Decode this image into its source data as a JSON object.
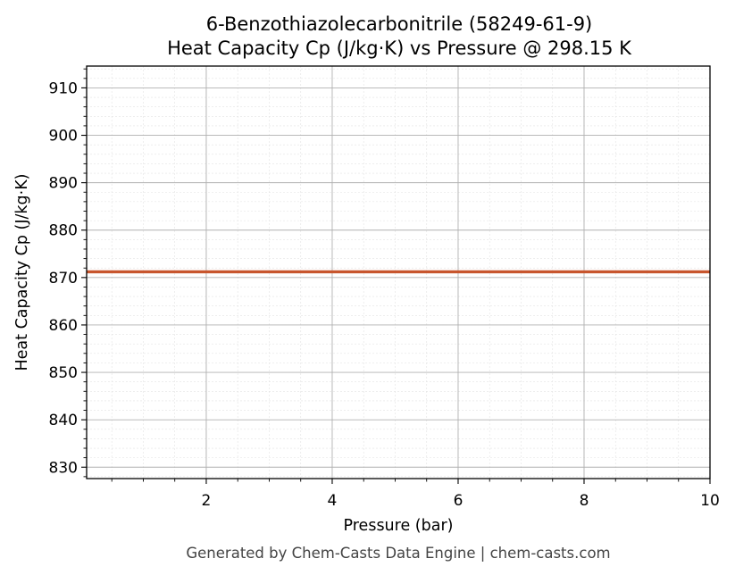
{
  "chart_data": {
    "type": "line",
    "title": "6-Benzothiazolecarbonitrile (58249-61-9)",
    "subtitle": "Heat Capacity Cp (J/kg·K) vs Pressure @ 298.15 K",
    "xlabel": "Pressure (bar)",
    "ylabel": "Heat Capacity Cp (J/kg·K)",
    "xlim": [
      0.1,
      10
    ],
    "ylim": [
      827.6,
      914.6
    ],
    "xticks": [
      2,
      4,
      6,
      8,
      10
    ],
    "yticks": [
      830,
      840,
      850,
      860,
      870,
      880,
      890,
      900,
      910
    ],
    "grid": true,
    "x": [
      0.1,
      1,
      2,
      3,
      4,
      5,
      6,
      7,
      8,
      9,
      10
    ],
    "series": [
      {
        "values": [
          871.2,
          871.2,
          871.2,
          871.2,
          871.2,
          871.2,
          871.2,
          871.2,
          871.2,
          871.2,
          871.2
        ],
        "color": "#c8562e"
      }
    ]
  },
  "footer": "Generated by Chem-Casts Data Engine | chem-casts.com"
}
